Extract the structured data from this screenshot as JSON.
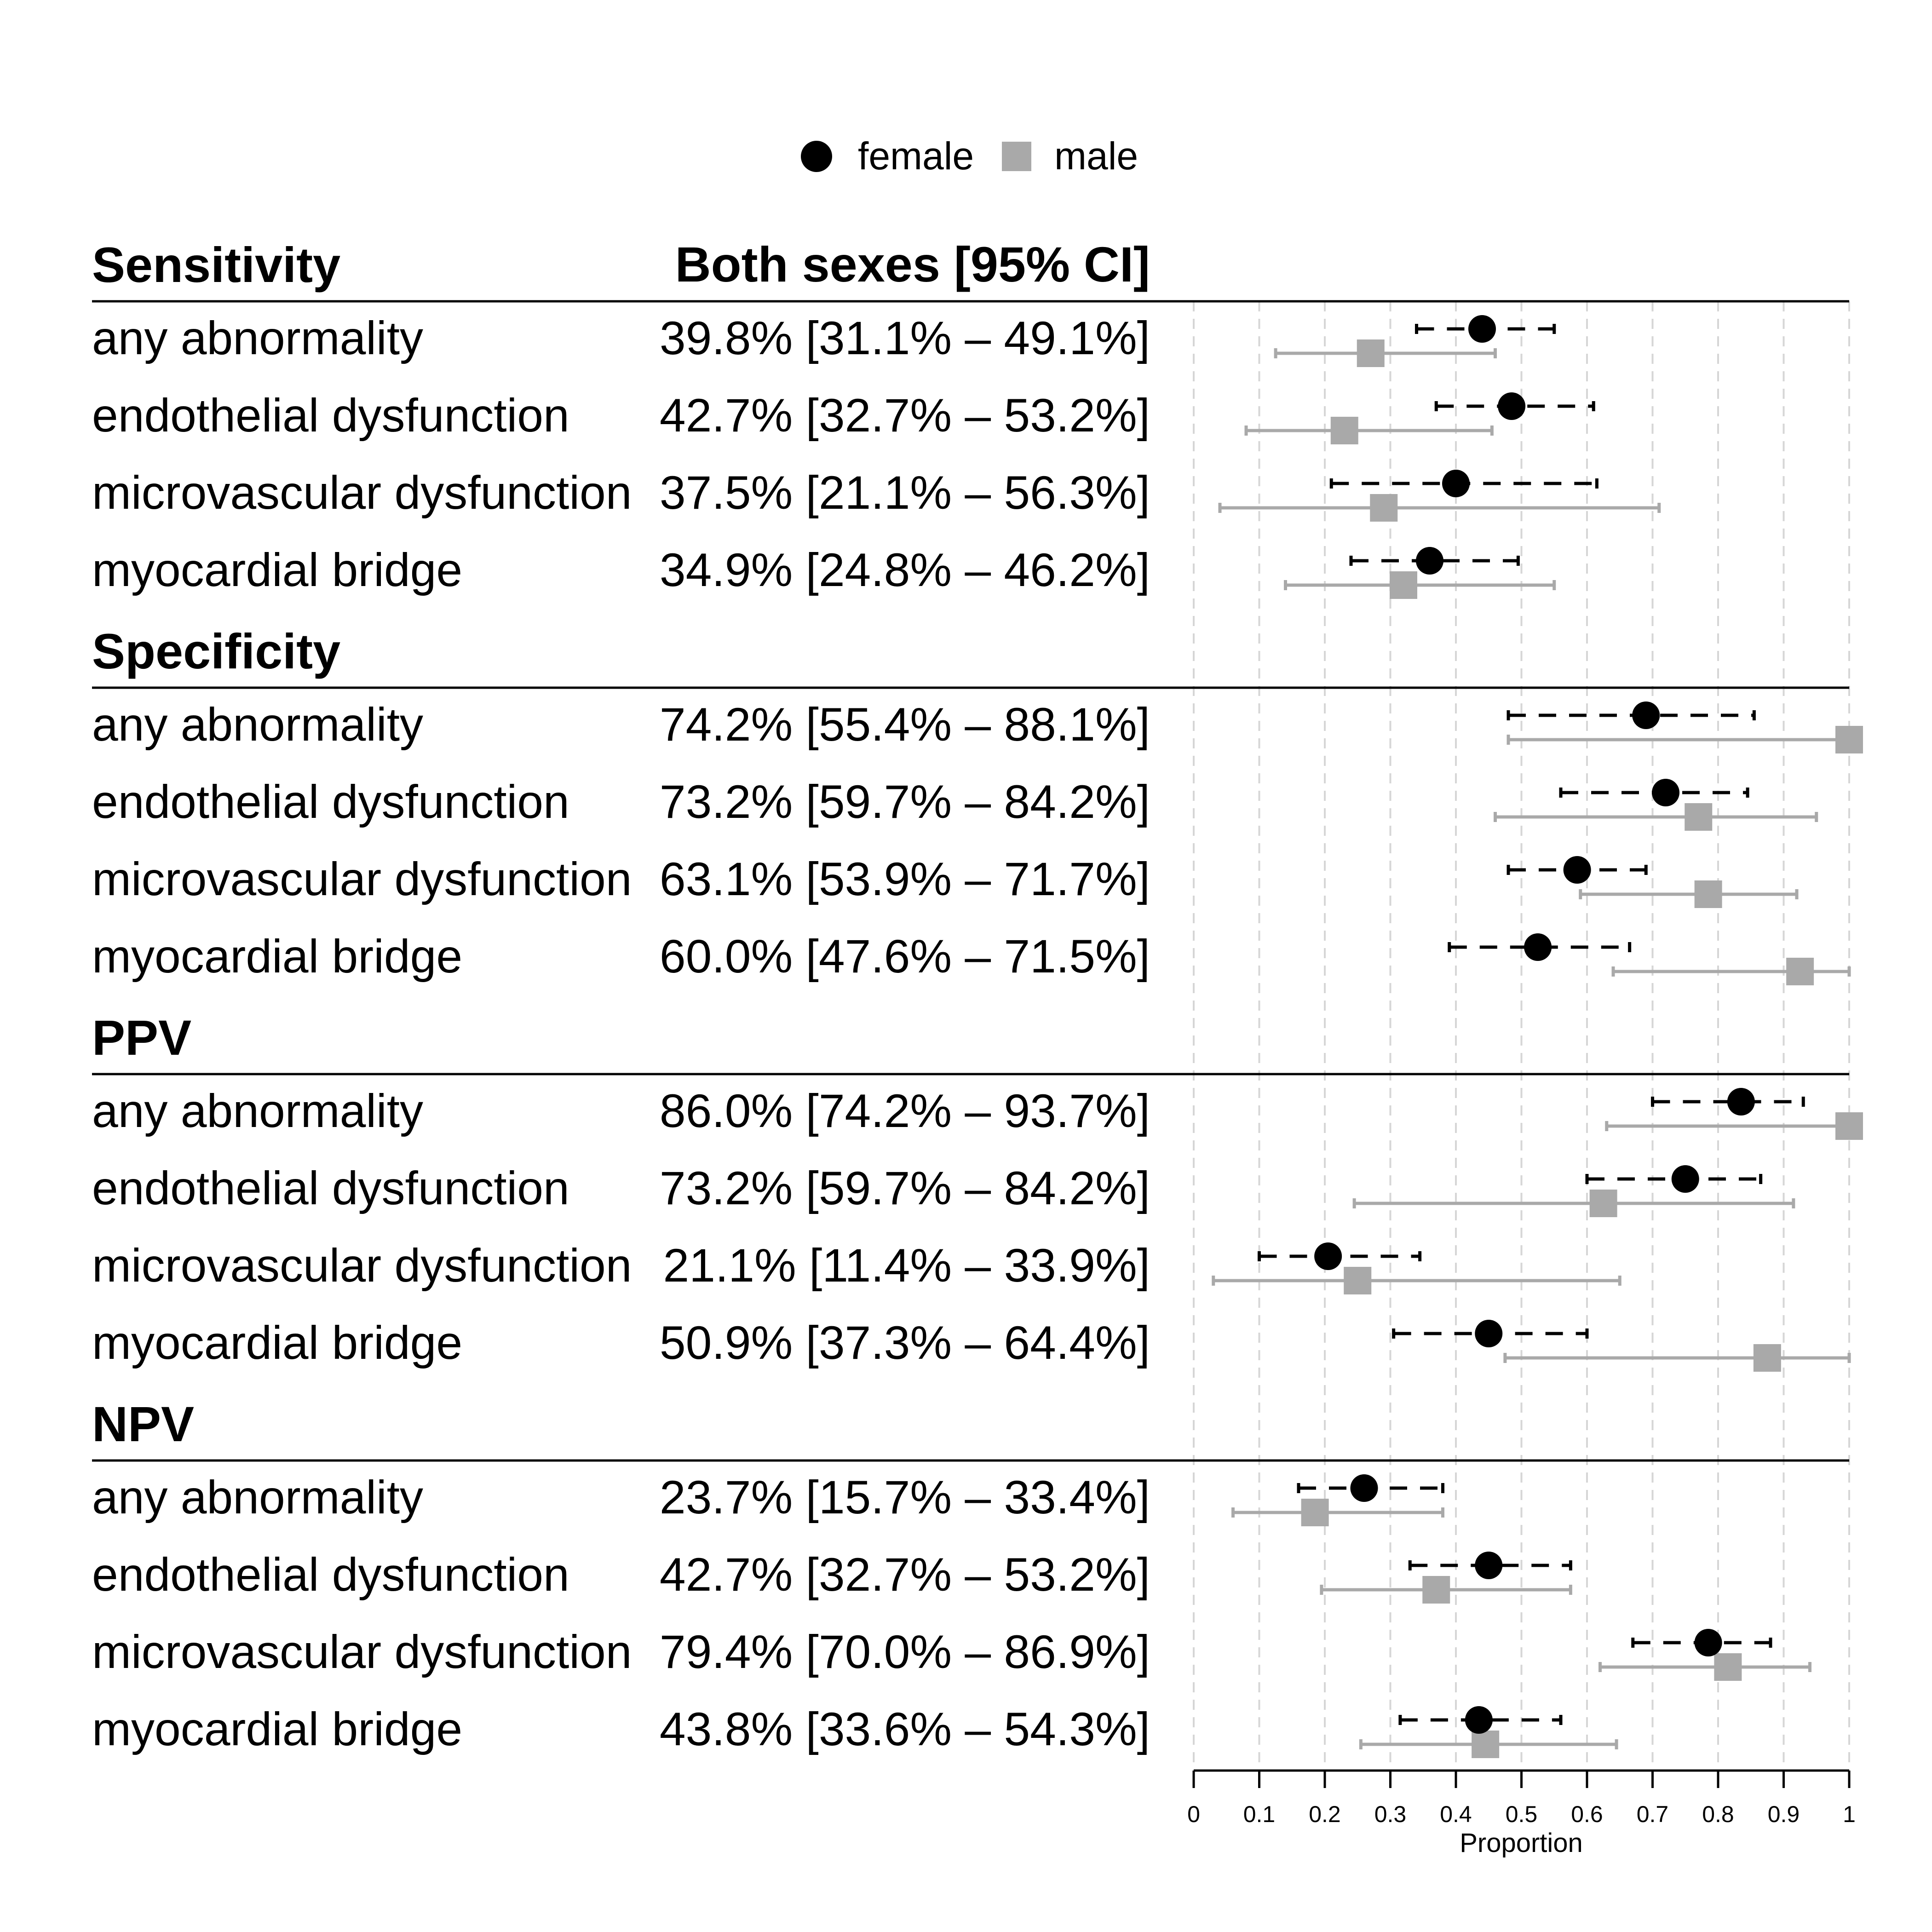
{
  "chart_data": {
    "type": "forest",
    "legend": {
      "placement": "top-center",
      "entries": [
        {
          "name": "female",
          "marker": "circle",
          "color": "#000000",
          "line": "dashed"
        },
        {
          "name": "male",
          "marker": "square",
          "color": "#a9a9a9",
          "line": "solid"
        }
      ]
    },
    "column_headers": {
      "left": "Sensitivity",
      "middle": "Both sexes [95% CI]"
    },
    "x_axis": {
      "label": "Proportion",
      "range": [
        0,
        1
      ],
      "ticks": [
        0,
        0.1,
        0.2,
        0.3,
        0.4,
        0.5,
        0.6,
        0.7,
        0.8,
        0.9,
        1
      ],
      "tick_labels": [
        "0",
        "0.1",
        "0.2",
        "0.3",
        "0.4",
        "0.5",
        "0.6",
        "0.7",
        "0.8",
        "0.9",
        "1"
      ],
      "grid": "dashed vertical"
    },
    "sections": [
      {
        "title": "Sensitivity",
        "rows": [
          {
            "label": "any abnormality",
            "both": "39.8% [31.1% – 49.1%]",
            "female": {
              "est": 0.44,
              "lo": 0.34,
              "hi": 0.55
            },
            "male": {
              "est": 0.27,
              "lo": 0.125,
              "hi": 0.46
            }
          },
          {
            "label": "endothelial dysfunction",
            "both": "42.7% [32.7% – 53.2%]",
            "female": {
              "est": 0.485,
              "lo": 0.37,
              "hi": 0.61
            },
            "male": {
              "est": 0.23,
              "lo": 0.08,
              "hi": 0.455
            }
          },
          {
            "label": "microvascular dysfunction",
            "both": "37.5% [21.1% – 56.3%]",
            "female": {
              "est": 0.4,
              "lo": 0.21,
              "hi": 0.615
            },
            "male": {
              "est": 0.29,
              "lo": 0.04,
              "hi": 0.71
            }
          },
          {
            "label": "myocardial bridge",
            "both": "34.9% [24.8% – 46.2%]",
            "female": {
              "est": 0.36,
              "lo": 0.24,
              "hi": 0.495
            },
            "male": {
              "est": 0.32,
              "lo": 0.14,
              "hi": 0.55
            }
          }
        ]
      },
      {
        "title": "Specificity",
        "rows": [
          {
            "label": "any abnormality",
            "both": "74.2% [55.4% – 88.1%]",
            "female": {
              "est": 0.69,
              "lo": 0.48,
              "hi": 0.855
            },
            "male": {
              "est": 1.0,
              "lo": 0.48,
              "hi": 1.0
            }
          },
          {
            "label": "endothelial dysfunction",
            "both": "73.2% [59.7% – 84.2%]",
            "female": {
              "est": 0.72,
              "lo": 0.56,
              "hi": 0.845
            },
            "male": {
              "est": 0.77,
              "lo": 0.46,
              "hi": 0.95
            }
          },
          {
            "label": "microvascular dysfunction",
            "both": "63.1% [53.9% – 71.7%]",
            "female": {
              "est": 0.585,
              "lo": 0.48,
              "hi": 0.69
            },
            "male": {
              "est": 0.785,
              "lo": 0.59,
              "hi": 0.92
            }
          },
          {
            "label": "myocardial bridge",
            "both": "60.0% [47.6% – 71.5%]",
            "female": {
              "est": 0.525,
              "lo": 0.39,
              "hi": 0.665
            },
            "male": {
              "est": 0.925,
              "lo": 0.64,
              "hi": 1.0
            }
          }
        ]
      },
      {
        "title": "PPV",
        "rows": [
          {
            "label": "any abnormality",
            "both": "86.0% [74.2% – 93.7%]",
            "female": {
              "est": 0.835,
              "lo": 0.7,
              "hi": 0.93
            },
            "male": {
              "est": 1.0,
              "lo": 0.63,
              "hi": 1.0
            }
          },
          {
            "label": "endothelial dysfunction",
            "both": "73.2% [59.7% – 84.2%]",
            "female": {
              "est": 0.75,
              "lo": 0.6,
              "hi": 0.865
            },
            "male": {
              "est": 0.625,
              "lo": 0.245,
              "hi": 0.915
            }
          },
          {
            "label": "microvascular dysfunction",
            "both": "21.1% [11.4% – 33.9%]",
            "female": {
              "est": 0.205,
              "lo": 0.1,
              "hi": 0.345
            },
            "male": {
              "est": 0.25,
              "lo": 0.03,
              "hi": 0.65
            }
          },
          {
            "label": "myocardial bridge",
            "both": "50.9% [37.3% – 64.4%]",
            "female": {
              "est": 0.45,
              "lo": 0.305,
              "hi": 0.6
            },
            "male": {
              "est": 0.875,
              "lo": 0.475,
              "hi": 1.0
            }
          }
        ]
      },
      {
        "title": "NPV",
        "rows": [
          {
            "label": "any abnormality",
            "both": "23.7% [15.7% – 33.4%]",
            "female": {
              "est": 0.26,
              "lo": 0.16,
              "hi": 0.38
            },
            "male": {
              "est": 0.185,
              "lo": 0.06,
              "hi": 0.38
            }
          },
          {
            "label": "endothelial dysfunction",
            "both": "42.7% [32.7% – 53.2%]",
            "female": {
              "est": 0.45,
              "lo": 0.33,
              "hi": 0.575
            },
            "male": {
              "est": 0.37,
              "lo": 0.195,
              "hi": 0.575
            }
          },
          {
            "label": "microvascular dysfunction",
            "both": "79.4% [70.0% – 86.9%]",
            "female": {
              "est": 0.785,
              "lo": 0.67,
              "hi": 0.88
            },
            "male": {
              "est": 0.815,
              "lo": 0.62,
              "hi": 0.94
            }
          },
          {
            "label": "myocardial bridge",
            "both": "43.8% [33.6% – 54.3%]",
            "female": {
              "est": 0.435,
              "lo": 0.315,
              "hi": 0.56
            },
            "male": {
              "est": 0.445,
              "lo": 0.255,
              "hi": 0.645
            }
          }
        ]
      }
    ]
  }
}
